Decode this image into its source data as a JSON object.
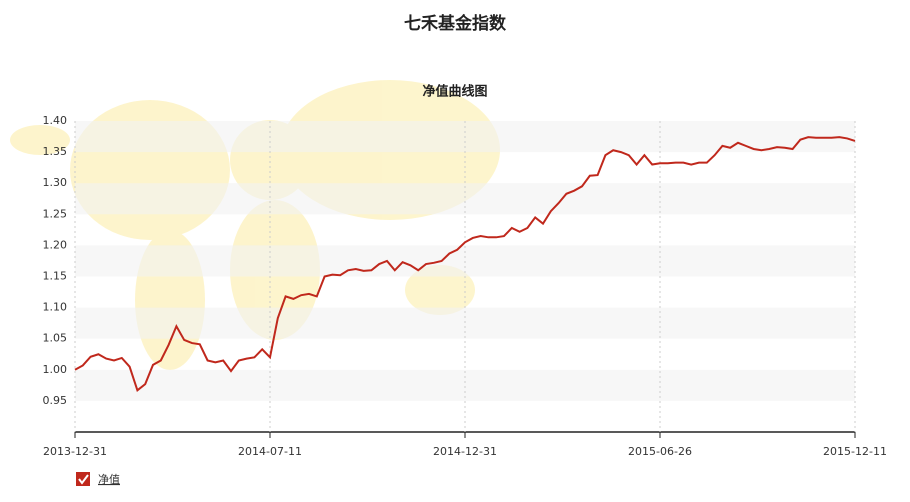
{
  "chart_data": {
    "type": "line",
    "title": "七禾基金指数",
    "subtitle": "净值曲线图",
    "categories": [
      "2013-12-31",
      null,
      null,
      null,
      null,
      null,
      null,
      null,
      null,
      null,
      null,
      null,
      null,
      null,
      null,
      null,
      null,
      null,
      null,
      null,
      null,
      null,
      null,
      null,
      null,
      "2014-07-11",
      null,
      null,
      null,
      null,
      null,
      null,
      null,
      null,
      null,
      null,
      null,
      null,
      null,
      null,
      null,
      null,
      null,
      null,
      null,
      null,
      null,
      null,
      null,
      null,
      "2014-12-31",
      null,
      null,
      null,
      null,
      null,
      null,
      null,
      null,
      null,
      null,
      null,
      null,
      null,
      null,
      null,
      null,
      null,
      null,
      null,
      null,
      null,
      null,
      null,
      null,
      "2015-06-26",
      null,
      null,
      null,
      null,
      null,
      null,
      null,
      null,
      null,
      null,
      null,
      null,
      null,
      null,
      null,
      null,
      null,
      null,
      null,
      null,
      null,
      null,
      null,
      null,
      "2015-12-11"
    ],
    "series": [
      {
        "name": "净值",
        "color": "#c0281c",
        "values": [
          1.0,
          1.007,
          1.021,
          1.025,
          1.018,
          1.015,
          1.019,
          1.005,
          0.967,
          0.977,
          1.008,
          1.015,
          1.04,
          1.07,
          1.048,
          1.043,
          1.041,
          1.015,
          1.012,
          1.015,
          0.998,
          1.015,
          1.018,
          1.02,
          1.033,
          1.02,
          1.083,
          1.118,
          1.114,
          1.12,
          1.122,
          1.118,
          1.15,
          1.153,
          1.152,
          1.16,
          1.162,
          1.159,
          1.16,
          1.17,
          1.175,
          1.16,
          1.173,
          1.168,
          1.16,
          1.17,
          1.172,
          1.175,
          1.187,
          1.193,
          1.205,
          1.212,
          1.215,
          1.213,
          1.213,
          1.215,
          1.228,
          1.222,
          1.228,
          1.245,
          1.235,
          1.255,
          1.268,
          1.283,
          1.288,
          1.295,
          1.312,
          1.313,
          1.345,
          1.353,
          1.35,
          1.345,
          1.33,
          1.345,
          1.33,
          1.332,
          1.332,
          1.333,
          1.333,
          1.33,
          1.333,
          1.333,
          1.345,
          1.36,
          1.357,
          1.365,
          1.36,
          1.355,
          1.353,
          1.355,
          1.358,
          1.357,
          1.355,
          1.37,
          1.374,
          1.373,
          1.373,
          1.373,
          1.374,
          1.372,
          1.368
        ]
      }
    ],
    "ylim": [
      0.9,
      1.4
    ],
    "yticks": [
      0.95,
      {
        "value": 1.0,
        "label": "1.00"
      },
      1.05,
      {
        "value": 1.1,
        "label": "1.10"
      },
      1.15,
      {
        "value": 1.2,
        "label": "1.20"
      },
      1.25,
      {
        "value": 1.3,
        "label": "1.30"
      },
      1.35,
      {
        "value": 1.4,
        "label": "1.40"
      }
    ],
    "grid": true
  }
}
